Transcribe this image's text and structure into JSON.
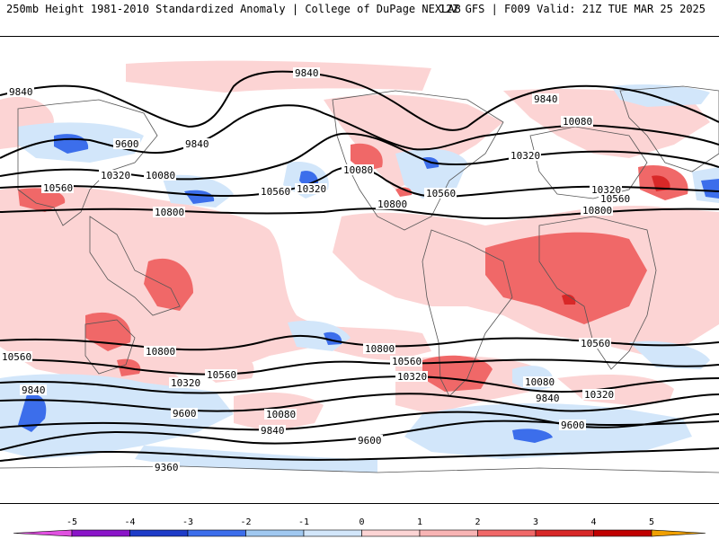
{
  "header": {
    "title_left": "250mb Height 1981-2010 Standardized Anomaly | College of DuPage NEXLAB",
    "title_right": "12Z GFS | F009 Valid: 21Z TUE MAR 25 2025"
  },
  "colors": {
    "neg5": "#e050e0",
    "neg4": "#8a14c8",
    "neg3": "#1e3cc8",
    "neg2": "#3c6eeb",
    "neg1": "#a0c8f0",
    "neg0": "#d2e6fa",
    "zero": "#ffffff",
    "pos0": "#fcd4d4",
    "pos1": "#f8b4b4",
    "pos2": "#f06868",
    "pos3": "#d82828",
    "pos4": "#c00000",
    "pos5": "#f0a000",
    "contour": "#000000",
    "coast": "#555555"
  },
  "contour_labels": [
    {
      "text": "9840"
    },
    {
      "text": "9840"
    },
    {
      "text": "9600"
    },
    {
      "text": "9840"
    },
    {
      "text": "10320"
    },
    {
      "text": "10080"
    },
    {
      "text": "10560"
    },
    {
      "text": "10800"
    },
    {
      "text": "10560"
    },
    {
      "text": "10320"
    },
    {
      "text": "10080"
    },
    {
      "text": "10560"
    },
    {
      "text": "10800"
    },
    {
      "text": "9840"
    },
    {
      "text": "10080"
    },
    {
      "text": "10320"
    },
    {
      "text": "10320"
    },
    {
      "text": "10560"
    },
    {
      "text": "10800"
    },
    {
      "text": "10560"
    },
    {
      "text": "10800"
    },
    {
      "text": "10800"
    },
    {
      "text": "10560"
    },
    {
      "text": "10560"
    },
    {
      "text": "10320"
    },
    {
      "text": "10560"
    },
    {
      "text": "10320"
    },
    {
      "text": "10080"
    },
    {
      "text": "9840"
    },
    {
      "text": "10320"
    },
    {
      "text": "9840"
    },
    {
      "text": "9600"
    },
    {
      "text": "10080"
    },
    {
      "text": "9840"
    },
    {
      "text": "9600"
    },
    {
      "text": "9600"
    },
    {
      "text": "9360"
    }
  ],
  "colorbar": {
    "ticks": [
      "-5",
      "-4",
      "-3",
      "-2",
      "-1",
      "0",
      "1",
      "2",
      "3",
      "4",
      "5"
    ]
  }
}
